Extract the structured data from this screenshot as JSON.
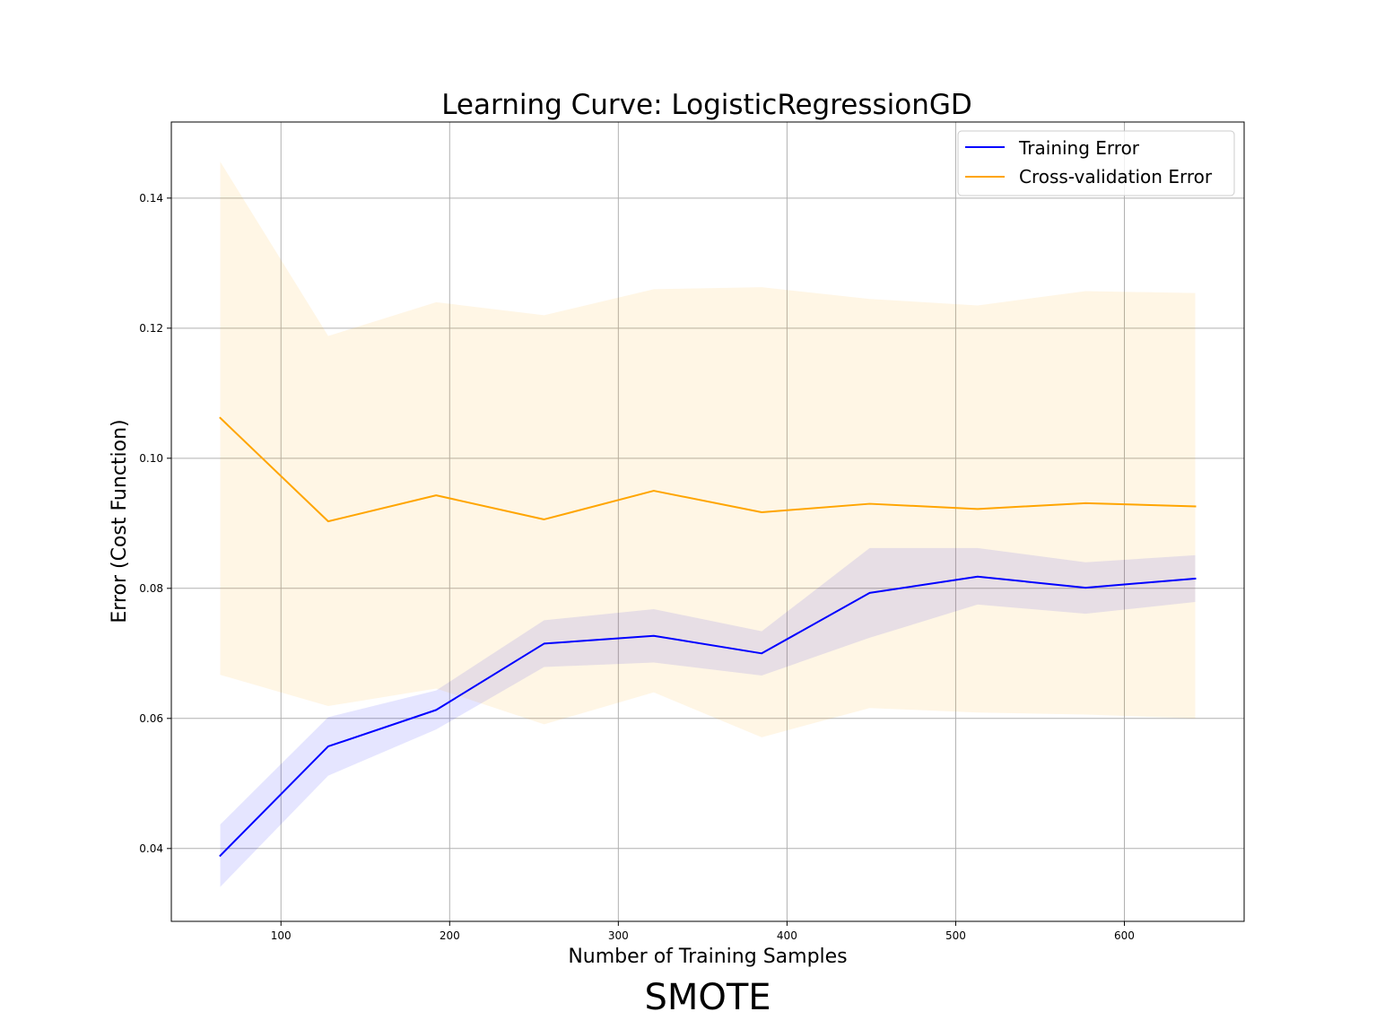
{
  "chart_data": {
    "type": "line",
    "title": "Learning Curve: LogisticRegressionGD",
    "xlabel": "Number of Training Samples",
    "ylabel": "Error (Cost Function)",
    "caption": "SMOTE",
    "xlim": [
      35,
      671
    ],
    "ylim": [
      0.0288,
      0.1517
    ],
    "x_ticks": [
      100,
      200,
      300,
      400,
      500,
      600
    ],
    "x_tick_labels": [
      "100",
      "200",
      "300",
      "400",
      "500",
      "600"
    ],
    "y_ticks": [
      0.04,
      0.06,
      0.08,
      0.1,
      0.12,
      0.14
    ],
    "y_tick_labels": [
      "0.04",
      "0.06",
      "0.08",
      "0.10",
      "0.12",
      "0.14"
    ],
    "grid": true,
    "legend_position": "top-right",
    "x": [
      64,
      128,
      192,
      256,
      321,
      385,
      449,
      513,
      577,
      642
    ],
    "series": [
      {
        "name": "Training Error",
        "color": "#0000ff",
        "band_color": "#0000ff",
        "values": [
          0.0389,
          0.0557,
          0.0613,
          0.0715,
          0.0727,
          0.07,
          0.0793,
          0.0818,
          0.0801,
          0.0815
        ],
        "upper": [
          0.0437,
          0.0602,
          0.0643,
          0.0751,
          0.0768,
          0.0734,
          0.0862,
          0.0862,
          0.084,
          0.0851
        ],
        "lower": [
          0.0341,
          0.0512,
          0.0583,
          0.0679,
          0.0686,
          0.0666,
          0.0724,
          0.0775,
          0.0761,
          0.0779
        ]
      },
      {
        "name": "Cross-validation Error",
        "color": "#ffa500",
        "band_color": "#ffa500",
        "values": [
          0.1062,
          0.0903,
          0.0943,
          0.0906,
          0.095,
          0.0917,
          0.093,
          0.0922,
          0.0931,
          0.0926
        ],
        "upper": [
          0.1456,
          0.1188,
          0.124,
          0.122,
          0.126,
          0.1263,
          0.1245,
          0.1235,
          0.1257,
          0.1254
        ],
        "lower": [
          0.0667,
          0.0619,
          0.0646,
          0.0591,
          0.064,
          0.0571,
          0.0616,
          0.0609,
          0.0606,
          0.06
        ]
      }
    ]
  }
}
